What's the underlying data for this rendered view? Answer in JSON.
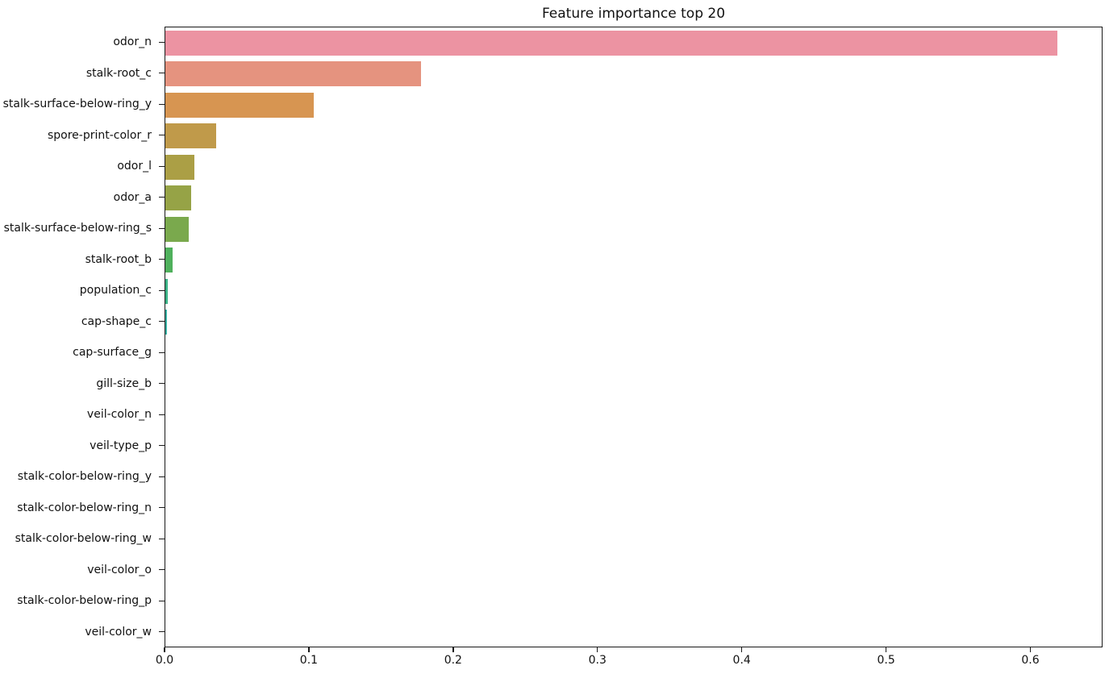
{
  "title": "Feature importance top 20",
  "chart_data": {
    "type": "bar",
    "orientation": "horizontal",
    "title": "Feature importance top 20",
    "xlabel": "",
    "ylabel": "",
    "grid": false,
    "legend": null,
    "xlim": [
      0,
      0.65
    ],
    "x_tick_values": [
      0.0,
      0.1,
      0.2,
      0.3,
      0.4,
      0.5,
      0.6
    ],
    "x_tick_labels": [
      "0.0",
      "0.1",
      "0.2",
      "0.3",
      "0.4",
      "0.5",
      "0.6"
    ],
    "categories": [
      "odor_n",
      "stalk-root_c",
      "stalk-surface-below-ring_y",
      "spore-print-color_r",
      "odor_l",
      "odor_a",
      "stalk-surface-below-ring_s",
      "stalk-root_b",
      "population_c",
      "cap-shape_c",
      "cap-surface_g",
      "gill-size_b",
      "veil-color_n",
      "veil-type_p",
      "stalk-color-below-ring_y",
      "stalk-color-below-ring_n",
      "stalk-color-below-ring_w",
      "veil-color_o",
      "stalk-color-below-ring_p",
      "veil-color_w"
    ],
    "values": [
      0.618,
      0.177,
      0.103,
      0.035,
      0.02,
      0.018,
      0.016,
      0.005,
      0.0017,
      0.001,
      0,
      0,
      0,
      0,
      0,
      0,
      0,
      0,
      0,
      0
    ],
    "bar_colors": [
      "#ec93a2",
      "#e5937f",
      "#d79551",
      "#c09a4a",
      "#ab9f45",
      "#96a346",
      "#7aa94d",
      "#4fb05c",
      "#3ab286",
      "#38b1a4",
      "#39afbb",
      "#3dabce",
      "#55a3e4",
      "#8c9af0",
      "#b28ff2",
      "#cd88ee",
      "#e182dd",
      "#ec7fc5",
      "#f17ea9",
      "#f47f8f"
    ]
  },
  "colors": {
    "background": "#ffffff",
    "axis": "#1a1a1a",
    "text": "#111111"
  }
}
